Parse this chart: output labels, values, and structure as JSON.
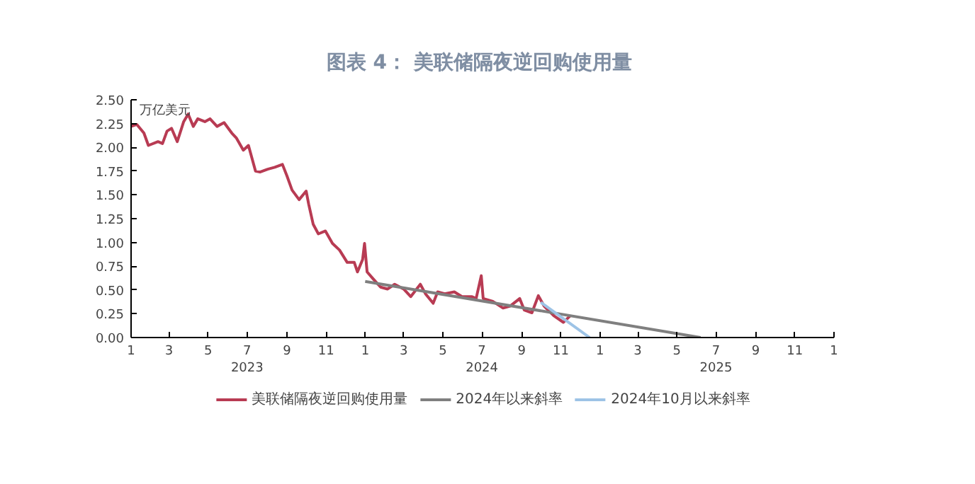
{
  "chart_data": {
    "type": "line",
    "title": "图表 4：  美联储隔夜逆回购使用量",
    "ylabel": "万亿美元",
    "xlim": [
      "2023-01-01",
      "2026-01-01"
    ],
    "xticks": [
      {
        "value": "2023-01-01",
        "label": "1"
      },
      {
        "value": "2023-03-01",
        "label": "3"
      },
      {
        "value": "2023-05-01",
        "label": "5"
      },
      {
        "value": "2023-07-01",
        "label": "7"
      },
      {
        "value": "2023-09-01",
        "label": "9"
      },
      {
        "value": "2023-11-01",
        "label": "11"
      },
      {
        "value": "2024-01-01",
        "label": "1"
      },
      {
        "value": "2024-03-01",
        "label": "3"
      },
      {
        "value": "2024-05-01",
        "label": "5"
      },
      {
        "value": "2024-07-01",
        "label": "7"
      },
      {
        "value": "2024-09-01",
        "label": "9"
      },
      {
        "value": "2024-11-01",
        "label": "11"
      },
      {
        "value": "2025-01-01",
        "label": "1"
      },
      {
        "value": "2025-03-01",
        "label": "3"
      },
      {
        "value": "2025-05-01",
        "label": "5"
      },
      {
        "value": "2025-07-01",
        "label": "7"
      },
      {
        "value": "2025-09-01",
        "label": "9"
      },
      {
        "value": "2025-11-01",
        "label": "11"
      },
      {
        "value": "2026-01-01",
        "label": "1"
      }
    ],
    "x2lim": [
      "2023-01-01",
      "2026-01-01"
    ],
    "x2ticks": [
      {
        "value": "2023-07-01",
        "label": "2023"
      },
      {
        "value": "2024-07-01",
        "label": "2024"
      },
      {
        "value": "2025-07-01",
        "label": "2025"
      }
    ],
    "ylim": [
      0,
      2.5
    ],
    "yticks": [
      {
        "value": 0,
        "label": "0.00"
      },
      {
        "value": 0.25,
        "label": "0.25"
      },
      {
        "value": 0.5,
        "label": "0.50"
      },
      {
        "value": 0.75,
        "label": "0.75"
      },
      {
        "value": 1,
        "label": "1.00"
      },
      {
        "value": 1.25,
        "label": "1.25"
      },
      {
        "value": 1.5,
        "label": "1.50"
      },
      {
        "value": 1.75,
        "label": "1.75"
      },
      {
        "value": 2,
        "label": "2.00"
      },
      {
        "value": 2.25,
        "label": "2.25"
      },
      {
        "value": 2.5,
        "label": "2.50"
      }
    ],
    "grid": false,
    "legend": "bottom",
    "marker": "none",
    "line_style": "solid",
    "series": [
      {
        "name": "美联储隔夜逆回购使用量",
        "color": "#b83b53",
        "x": [
          "2023-01-01",
          "2023-01-10",
          "2023-01-21",
          "2023-01-28",
          "2023-02-12",
          "2023-02-19",
          "2023-02-26",
          "2023-03-05",
          "2023-03-14",
          "2023-03-24",
          "2023-03-31",
          "2023-04-08",
          "2023-04-15",
          "2023-04-26",
          "2023-05-04",
          "2023-05-15",
          "2023-05-26",
          "2023-06-07",
          "2023-06-14",
          "2023-06-25",
          "2023-07-03",
          "2023-07-14",
          "2023-07-21",
          "2023-08-02",
          "2023-08-13",
          "2023-08-25",
          "2023-09-01",
          "2023-09-09",
          "2023-09-20",
          "2023-10-01",
          "2023-10-05",
          "2023-10-12",
          "2023-10-20",
          "2023-10-31",
          "2023-11-11",
          "2023-11-22",
          "2023-12-04",
          "2023-12-15",
          "2023-12-20",
          "2023-12-28",
          "2023-12-31",
          "2024-01-04",
          "2024-01-13",
          "2024-01-25",
          "2024-02-05",
          "2024-02-16",
          "2024-03-01",
          "2024-03-12",
          "2024-03-27",
          "2024-04-04",
          "2024-04-16",
          "2024-04-23",
          "2024-05-04",
          "2024-05-19",
          "2024-05-31",
          "2024-06-15",
          "2024-06-22",
          "2024-06-30",
          "2024-07-03",
          "2024-07-18",
          "2024-08-03",
          "2024-08-14",
          "2024-08-29",
          "2024-09-05",
          "2024-09-17",
          "2024-09-27",
          "2024-10-06",
          "2024-10-21",
          "2024-11-05",
          "2024-11-16"
        ],
        "values": [
          2.22,
          2.24,
          2.15,
          2.02,
          2.06,
          2.04,
          2.17,
          2.2,
          2.06,
          2.27,
          2.35,
          2.22,
          2.3,
          2.27,
          2.3,
          2.22,
          2.26,
          2.15,
          2.1,
          1.97,
          2.02,
          1.75,
          1.74,
          1.77,
          1.79,
          1.82,
          1.7,
          1.55,
          1.45,
          1.54,
          1.4,
          1.19,
          1.09,
          1.12,
          0.99,
          0.92,
          0.79,
          0.79,
          0.69,
          0.82,
          0.99,
          0.69,
          0.62,
          0.53,
          0.51,
          0.56,
          0.51,
          0.43,
          0.56,
          0.46,
          0.36,
          0.48,
          0.46,
          0.48,
          0.43,
          0.43,
          0.41,
          0.65,
          0.41,
          0.38,
          0.31,
          0.33,
          0.41,
          0.29,
          0.26,
          0.44,
          0.33,
          0.23,
          0.16,
          0.23
        ]
      },
      {
        "name": "2024年以来斜率",
        "color": "#7f7f7f",
        "x": [
          "2024-01-01",
          "2025-06-07"
        ],
        "values": [
          0.59,
          0
        ]
      },
      {
        "name": "2024年10月以来斜率",
        "color": "#9dc3e6",
        "x": [
          "2024-10-01",
          "2024-12-16"
        ],
        "values": [
          0.37,
          0
        ]
      }
    ]
  }
}
